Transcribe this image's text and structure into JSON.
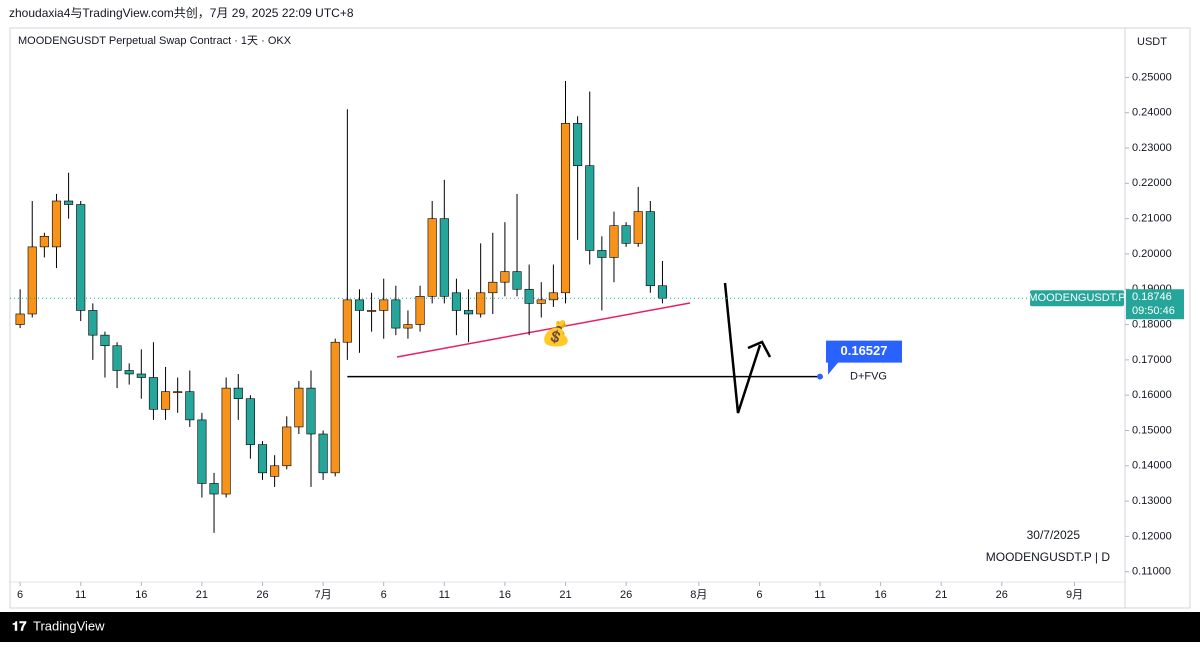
{
  "header": "zhoudaxia4与TradingView.com共创，7月 29, 2025 22:09 UTC+8",
  "footer": "TradingView",
  "chart_data": {
    "type": "candlestick",
    "title": "MOODENGUSDT Perpetual Swap Contract · 1天 · OKX",
    "y_axis_label": "USDT",
    "up_color": "#f7931a",
    "down_color": "#26a69a",
    "x": [
      "2025-06-06",
      "2025-06-07",
      "2025-06-08",
      "2025-06-09",
      "2025-06-10",
      "2025-06-11",
      "2025-06-12",
      "2025-06-13",
      "2025-06-14",
      "2025-06-15",
      "2025-06-16",
      "2025-06-17",
      "2025-06-18",
      "2025-06-19",
      "2025-06-20",
      "2025-06-21",
      "2025-06-22",
      "2025-06-23",
      "2025-06-24",
      "2025-06-25",
      "2025-06-26",
      "2025-06-27",
      "2025-06-28",
      "2025-06-29",
      "2025-06-30",
      "2025-07-01",
      "2025-07-02",
      "2025-07-03",
      "2025-07-04",
      "2025-07-05",
      "2025-07-06",
      "2025-07-07",
      "2025-07-08",
      "2025-07-09",
      "2025-07-10",
      "2025-07-11",
      "2025-07-12",
      "2025-07-13",
      "2025-07-14",
      "2025-07-15",
      "2025-07-16",
      "2025-07-17",
      "2025-07-18",
      "2025-07-19",
      "2025-07-20",
      "2025-07-21",
      "2025-07-22",
      "2025-07-23",
      "2025-07-24",
      "2025-07-25",
      "2025-07-26",
      "2025-07-27",
      "2025-07-28",
      "2025-07-29"
    ],
    "open": [
      0.18,
      0.183,
      0.202,
      0.202,
      0.215,
      0.214,
      0.184,
      0.177,
      0.174,
      0.167,
      0.166,
      0.165,
      0.156,
      0.161,
      0.161,
      0.153,
      0.135,
      0.132,
      0.162,
      0.159,
      0.146,
      0.137,
      0.14,
      0.151,
      0.162,
      0.149,
      0.138,
      0.175,
      0.187,
      0.184,
      0.184,
      0.187,
      0.179,
      0.18,
      0.188,
      0.21,
      0.189,
      0.184,
      0.183,
      0.189,
      0.192,
      0.195,
      0.19,
      0.186,
      0.187,
      0.189,
      0.237,
      0.225,
      0.201,
      0.199,
      0.208,
      0.203,
      0.212,
      0.191
    ],
    "high": [
      0.19,
      0.215,
      0.206,
      0.217,
      0.223,
      0.215,
      0.186,
      0.178,
      0.175,
      0.169,
      0.173,
      0.175,
      0.168,
      0.165,
      0.167,
      0.155,
      0.138,
      0.165,
      0.166,
      0.16,
      0.147,
      0.143,
      0.154,
      0.164,
      0.167,
      0.15,
      0.176,
      0.241,
      0.19,
      0.189,
      0.193,
      0.191,
      0.184,
      0.191,
      0.215,
      0.221,
      0.193,
      0.19,
      0.203,
      0.206,
      0.209,
      0.217,
      0.197,
      0.192,
      0.197,
      0.249,
      0.239,
      0.246,
      0.205,
      0.212,
      0.209,
      0.219,
      0.215,
      0.198
    ],
    "low": [
      0.179,
      0.182,
      0.199,
      0.196,
      0.21,
      0.181,
      0.17,
      0.165,
      0.162,
      0.163,
      0.159,
      0.153,
      0.153,
      0.155,
      0.151,
      0.131,
      0.121,
      0.131,
      0.153,
      0.142,
      0.136,
      0.134,
      0.139,
      0.149,
      0.134,
      0.136,
      0.137,
      0.17,
      0.172,
      0.178,
      0.176,
      0.177,
      0.176,
      0.178,
      0.186,
      0.186,
      0.177,
      0.175,
      0.182,
      0.183,
      0.188,
      0.188,
      0.177,
      0.182,
      0.185,
      0.186,
      0.204,
      0.197,
      0.184,
      0.192,
      0.202,
      0.202,
      0.189,
      0.186
    ],
    "close": [
      0.183,
      0.202,
      0.205,
      0.215,
      0.214,
      0.184,
      0.177,
      0.174,
      0.167,
      0.166,
      0.165,
      0.156,
      0.161,
      0.161,
      0.153,
      0.135,
      0.132,
      0.162,
      0.159,
      0.146,
      0.138,
      0.14,
      0.151,
      0.162,
      0.149,
      0.138,
      0.175,
      0.187,
      0.184,
      0.184,
      0.187,
      0.179,
      0.18,
      0.188,
      0.21,
      0.188,
      0.184,
      0.183,
      0.189,
      0.192,
      0.195,
      0.19,
      0.186,
      0.187,
      0.189,
      0.237,
      0.225,
      0.201,
      0.199,
      0.208,
      0.203,
      0.212,
      0.191,
      0.18746
    ],
    "xlim": [
      "2025-06-05",
      "2025-09-05"
    ],
    "xticks": [
      {
        "value": "2025-06-06",
        "label": "6"
      },
      {
        "value": "2025-06-11",
        "label": "11"
      },
      {
        "value": "2025-06-16",
        "label": "16"
      },
      {
        "value": "2025-06-21",
        "label": "21"
      },
      {
        "value": "2025-06-26",
        "label": "26"
      },
      {
        "value": "2025-07-01",
        "label": "7月"
      },
      {
        "value": "2025-07-06",
        "label": "6"
      },
      {
        "value": "2025-07-11",
        "label": "11"
      },
      {
        "value": "2025-07-16",
        "label": "16"
      },
      {
        "value": "2025-07-21",
        "label": "21"
      },
      {
        "value": "2025-07-26",
        "label": "26"
      },
      {
        "value": "2025-08-01",
        "label": "8月"
      },
      {
        "value": "2025-08-06",
        "label": "6"
      },
      {
        "value": "2025-08-11",
        "label": "11"
      },
      {
        "value": "2025-08-16",
        "label": "16"
      },
      {
        "value": "2025-08-21",
        "label": "21"
      },
      {
        "value": "2025-08-26",
        "label": "26"
      },
      {
        "value": "2025-09-01",
        "label": "9月"
      }
    ],
    "ylim": [
      0.1,
      0.264
    ],
    "yticks": [
      {
        "value": 0.11,
        "label": "0.11000"
      },
      {
        "value": 0.12,
        "label": "0.12000"
      },
      {
        "value": 0.13,
        "label": "0.13000"
      },
      {
        "value": 0.14,
        "label": "0.14000"
      },
      {
        "value": 0.15,
        "label": "0.15000"
      },
      {
        "value": 0.16,
        "label": "0.16000"
      },
      {
        "value": 0.17,
        "label": "0.17000"
      },
      {
        "value": 0.18,
        "label": "0.18000"
      },
      {
        "value": 0.19,
        "label": "0.19000"
      },
      {
        "value": 0.2,
        "label": "0.20000"
      },
      {
        "value": 0.21,
        "label": "0.21000"
      },
      {
        "value": 0.22,
        "label": "0.22000"
      },
      {
        "value": 0.23,
        "label": "0.23000"
      },
      {
        "value": 0.24,
        "label": "0.24000"
      },
      {
        "value": 0.25,
        "label": "0.25000"
      }
    ],
    "level": {
      "value": 0.16527,
      "from": "2025-07-03",
      "to": "2025-08-11",
      "name": "D+FVG"
    },
    "last_price": {
      "value": 0.18746,
      "label": "0.18746",
      "name": "MOODENGUSDT.P",
      "countdown": "09:50:46"
    },
    "date_label": "30/7/2025",
    "watermark": "MOODENGUSDT.P | D"
  }
}
